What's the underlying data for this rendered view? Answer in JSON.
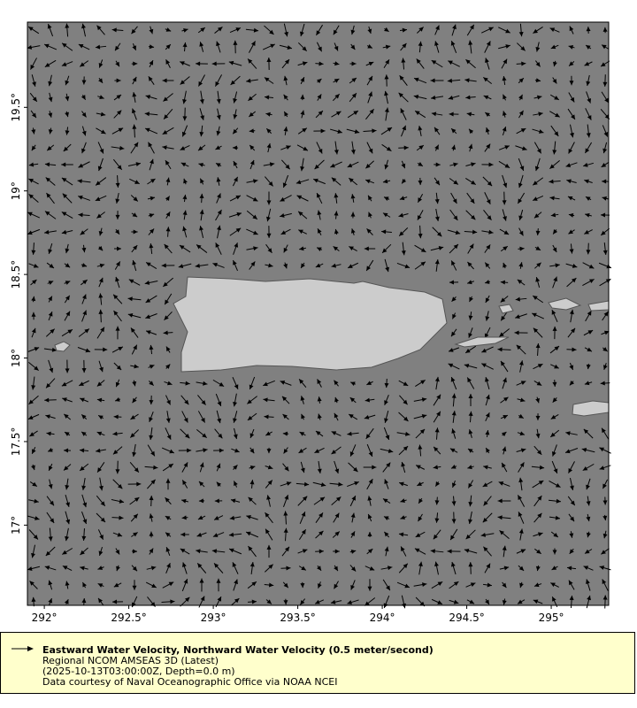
{
  "chart_data": {
    "type": "vector-map",
    "xlim": [
      291.9,
      295.34
    ],
    "ylim": [
      16.52,
      20.01
    ],
    "x_ticks": [
      "292°",
      "292.5°",
      "293°",
      "293.5°",
      "294°",
      "294.5°",
      "295°"
    ],
    "x_tick_values": [
      292,
      292.5,
      293,
      293.5,
      294,
      294.5,
      295
    ],
    "y_ticks": [
      "17°",
      "17.5°",
      "18°",
      "18.5°",
      "19°",
      "19.5°"
    ],
    "y_tick_values": [
      17,
      17.5,
      18,
      18.5,
      19,
      19.5
    ],
    "ocean_color": "#808080",
    "land_color": "#cccccc",
    "arrow_color": "#000000"
  },
  "legend": {
    "title": "Eastward Water Velocity, Northward Water Velocity (0.5 meter/second)",
    "dataset": "Regional NCOM AMSEAS 3D (Latest)",
    "time_depth": "(2025-10-13T03:00:00Z, Depth=0.0 m)",
    "credit": "Data courtesy of Naval Oceanographic Office via NOAA NCEI",
    "background": "#ffffcc"
  }
}
